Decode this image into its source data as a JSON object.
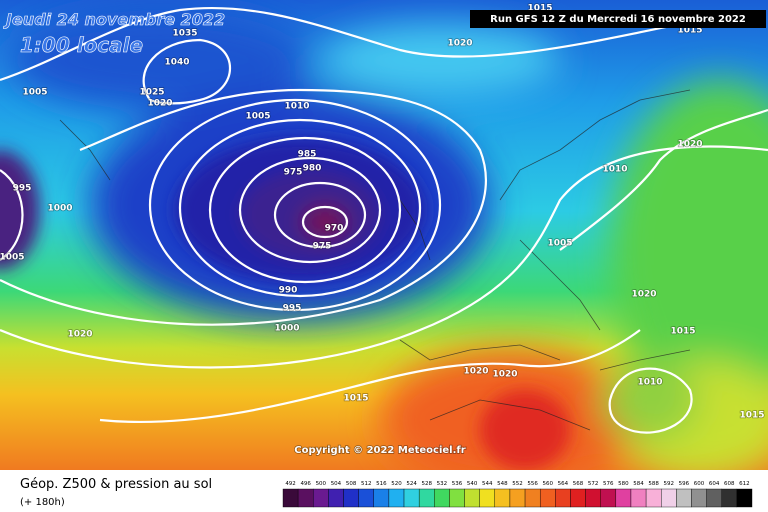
{
  "header": {
    "date": "Jeudi 24 novembre 2022",
    "time": "1:00 locale",
    "run": "Run GFS 12 Z du Mercredi 16 novembre 2022"
  },
  "copyright": "Copyright © 2022 Meteociel.fr",
  "footer": {
    "title": "Géop. Z500 & pression au sol",
    "lead": "(+ 180h)"
  },
  "isobar_labels": [
    1015,
    1035,
    1040,
    1025,
    1020,
    1005,
    1020,
    1015,
    1010,
    1005,
    985,
    975,
    980,
    970,
    975,
    995,
    1000,
    1005,
    990,
    995,
    1000,
    1020,
    1015,
    1020,
    1020,
    1005,
    1010,
    1020,
    1020,
    1015,
    1010,
    1015
  ],
  "colorbar_labels": [
    492,
    496,
    500,
    504,
    508,
    512,
    516,
    520,
    524,
    528,
    532,
    536,
    540,
    544,
    548,
    552,
    556,
    560,
    564,
    568,
    572,
    576,
    580,
    584,
    588,
    592,
    596,
    600,
    604,
    608,
    612
  ]
}
